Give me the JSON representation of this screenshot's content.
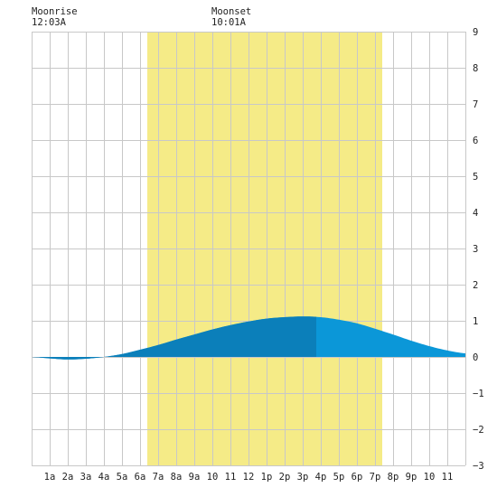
{
  "moonrise": {
    "label": "Moonrise",
    "time": "12:03A"
  },
  "moonset": {
    "label": "Moonset",
    "time": "10:01A"
  },
  "colors": {
    "daylight": "#f5eb87",
    "grid": "#c8c8c8",
    "tide_day": "#0b7fba",
    "tide_night": "#0b97d8",
    "axis_text": "#222222"
  },
  "chart_data": {
    "type": "area",
    "title": "",
    "xlabel": "",
    "ylabel": "",
    "xlim": [
      0,
      24
    ],
    "ylim": [
      -3,
      9
    ],
    "grid": true,
    "x_tick_labels": [
      "1a",
      "2a",
      "3a",
      "4a",
      "5a",
      "6a",
      "7a",
      "8a",
      "9a",
      "10",
      "11",
      "12",
      "1p",
      "2p",
      "3p",
      "4p",
      "5p",
      "6p",
      "7p",
      "8p",
      "9p",
      "10",
      "11"
    ],
    "y_ticks": [
      9,
      8,
      7,
      6,
      5,
      4,
      3,
      2,
      1,
      0,
      -1,
      -2,
      -3
    ],
    "daylight_hours": [
      6.4,
      19.4
    ],
    "current_time_hour": 15.75,
    "series": [
      {
        "x": [
          0,
          1,
          2,
          3,
          4,
          5,
          6,
          7,
          8,
          9,
          10,
          11,
          12,
          13,
          14,
          15,
          16,
          17,
          18,
          19,
          20,
          21,
          22,
          23,
          24
        ],
        "values": [
          0.0,
          -0.04,
          -0.07,
          -0.05,
          0.0,
          0.08,
          0.2,
          0.33,
          0.48,
          0.62,
          0.76,
          0.88,
          0.98,
          1.06,
          1.1,
          1.12,
          1.1,
          1.03,
          0.93,
          0.78,
          0.62,
          0.45,
          0.3,
          0.18,
          0.1
        ]
      }
    ]
  }
}
